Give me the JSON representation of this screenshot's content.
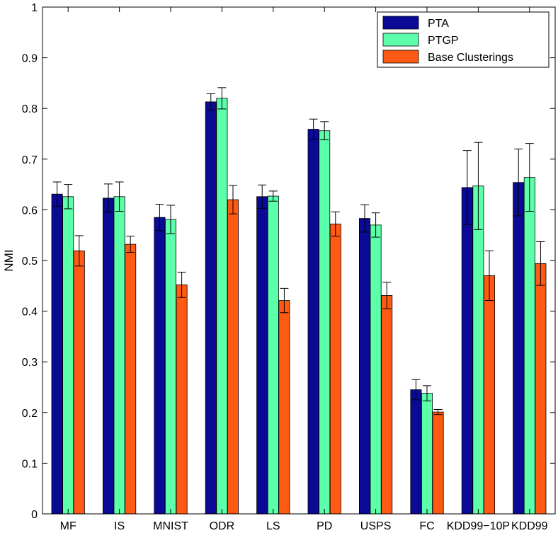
{
  "chart_data": {
    "type": "bar",
    "title": "",
    "xlabel": "",
    "ylabel": "NMI",
    "ylim": [
      0,
      1
    ],
    "yticks": [
      "0",
      "0.1",
      "0.2",
      "0.3",
      "0.4",
      "0.5",
      "0.6",
      "0.7",
      "0.8",
      "0.9",
      "1"
    ],
    "categories": [
      "MF",
      "IS",
      "MNIST",
      "ODR",
      "LS",
      "PD",
      "USPS",
      "FC",
      "KDD99−10P",
      "KDD99"
    ],
    "legend_position": "top-right",
    "series": [
      {
        "name": "PTA",
        "color": "#0a0a96",
        "values": [
          0.631,
          0.623,
          0.585,
          0.813,
          0.626,
          0.759,
          0.583,
          0.245,
          0.644,
          0.654
        ],
        "errors": [
          0.024,
          0.028,
          0.026,
          0.016,
          0.023,
          0.02,
          0.027,
          0.02,
          0.073,
          0.066
        ]
      },
      {
        "name": "PTGP",
        "color": "#5cffaa",
        "values": [
          0.626,
          0.626,
          0.581,
          0.82,
          0.627,
          0.756,
          0.57,
          0.238,
          0.647,
          0.664
        ],
        "errors": [
          0.024,
          0.029,
          0.028,
          0.021,
          0.01,
          0.018,
          0.024,
          0.015,
          0.086,
          0.067
        ]
      },
      {
        "name": "Base Clusterings",
        "color": "#ff5a14",
        "values": [
          0.519,
          0.532,
          0.452,
          0.62,
          0.421,
          0.572,
          0.431,
          0.201,
          0.47,
          0.494
        ],
        "errors": [
          0.03,
          0.016,
          0.025,
          0.028,
          0.024,
          0.024,
          0.026,
          0.005,
          0.049,
          0.043
        ]
      }
    ]
  }
}
